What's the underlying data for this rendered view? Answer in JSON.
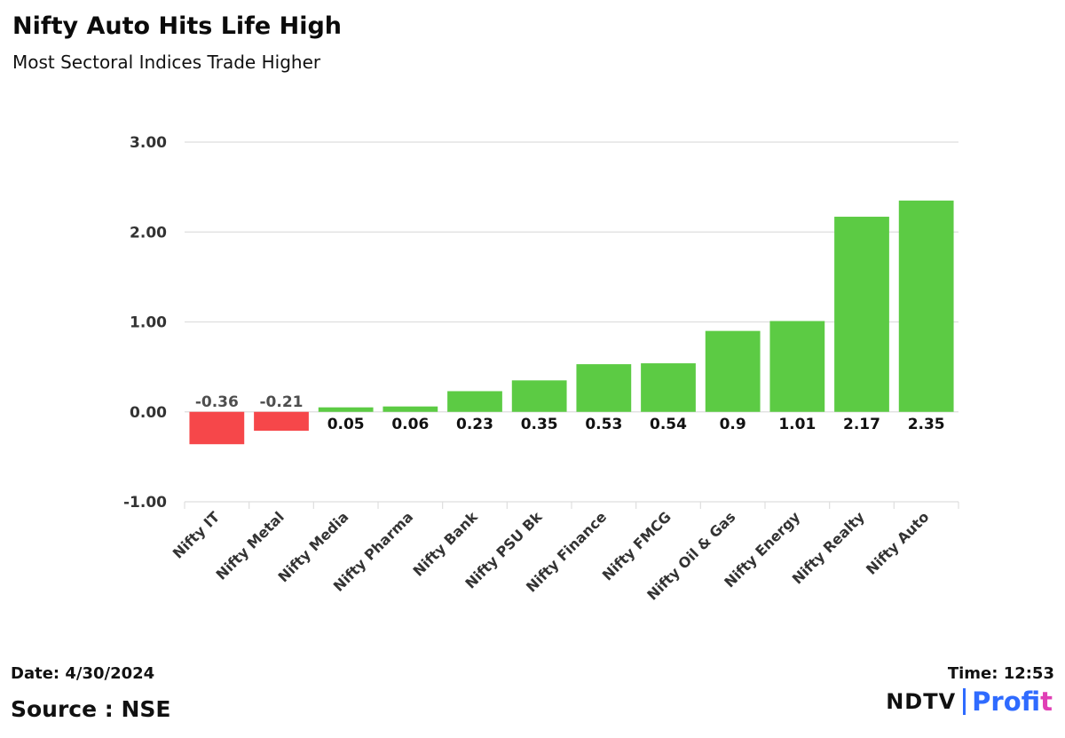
{
  "header": {
    "title": "Nifty Auto Hits Life High",
    "subtitle": "Most Sectoral Indices Trade Higher"
  },
  "footer": {
    "date": "Date: 4/30/2024",
    "source": "Source : NSE",
    "time": "Time: 12:53",
    "brand_ndtv": "NDTV",
    "brand_profit_main": "Prof",
    "brand_profit_accent": "it"
  },
  "colors": {
    "positive": "#5ccb44",
    "negative": "#f6474a",
    "grid": "#dedede",
    "axis_text": "#333333",
    "label_positive": "#111111",
    "label_negative": "#4e4e4e"
  },
  "chart_data": {
    "type": "bar",
    "title": "Nifty Auto Hits Life High",
    "subtitle": "Most Sectoral Indices Trade Higher",
    "categories": [
      "Nifty IT",
      "Nifty Metal",
      "Nifty Media",
      "Nifty Pharma",
      "Nifty Bank",
      "Nifty PSU Bk",
      "Nifty Finance",
      "Nifty FMCG",
      "Nifty Oil & Gas",
      "Nifty Energy",
      "Nifty Realty",
      "Nifty Auto"
    ],
    "values": [
      -0.36,
      -0.21,
      0.05,
      0.06,
      0.23,
      0.35,
      0.53,
      0.54,
      0.9,
      1.01,
      2.17,
      2.35
    ],
    "value_labels": [
      "-0.36",
      "-0.21",
      "0.05",
      "0.06",
      "0.23",
      "0.35",
      "0.53",
      "0.54",
      "0.9",
      "1.01",
      "2.17",
      "2.35"
    ],
    "yticks": [
      3,
      2,
      1,
      0,
      -1
    ],
    "ytick_labels": [
      "3.00",
      "2.00",
      "1.00",
      "0.00",
      "-1.00"
    ],
    "ylim": [
      -1,
      3
    ],
    "xlabel": "",
    "ylabel": "",
    "grid": true,
    "legend": "none"
  }
}
